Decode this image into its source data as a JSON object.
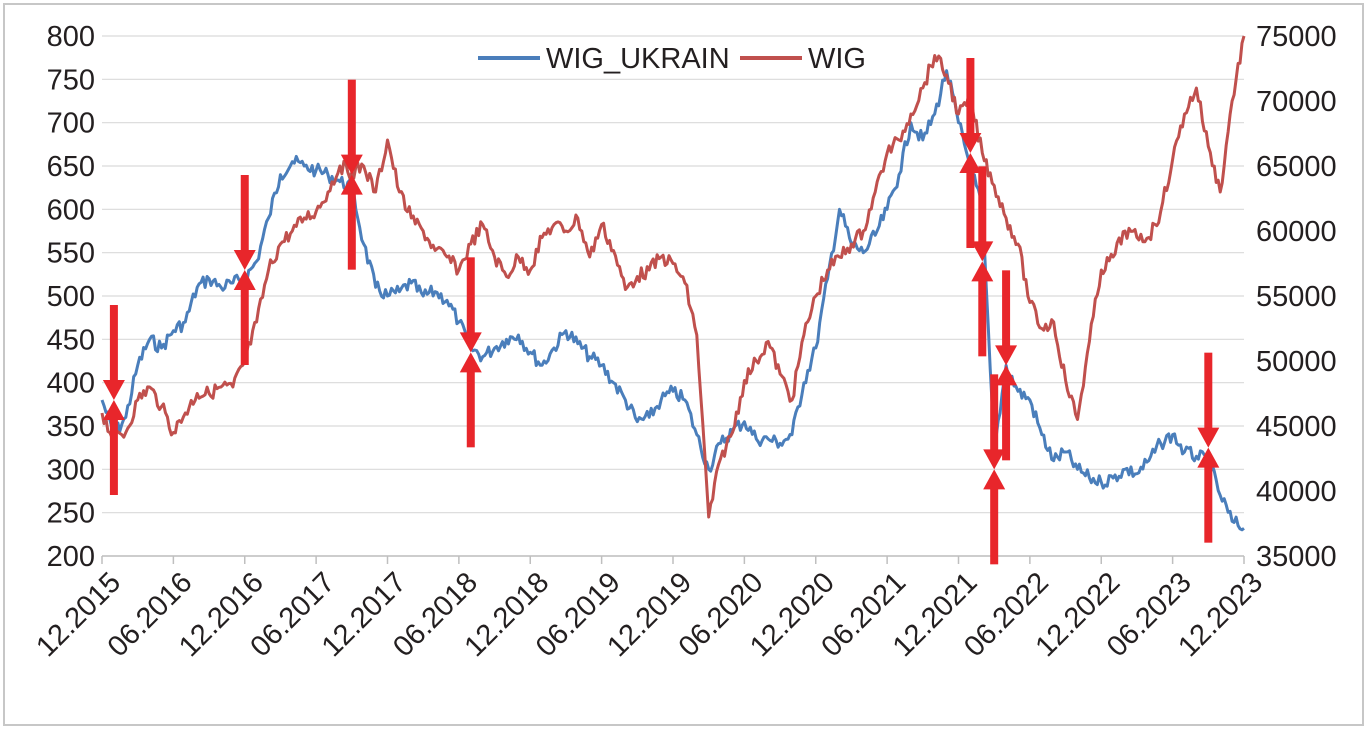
{
  "chart_data": {
    "type": "line",
    "title": "",
    "xlabel": "",
    "ylabel": "",
    "x_tick_labels": [
      "12.2015",
      "06.2016",
      "12.2016",
      "06.2017",
      "12.2017",
      "06.2018",
      "12.2018",
      "06.2019",
      "12.2019",
      "06.2020",
      "12.2020",
      "06.2021",
      "12.2021",
      "06.2022",
      "12.2022",
      "06.2023",
      "12.2023"
    ],
    "x_range": [
      "2015-12",
      "2023-12"
    ],
    "y_left": {
      "min": 200,
      "max": 800,
      "step": 50,
      "ticks": [
        "800",
        "750",
        "700",
        "650",
        "600",
        "550",
        "500",
        "450",
        "400",
        "350",
        "300",
        "250",
        "200"
      ]
    },
    "y_right": {
      "min": 35000,
      "max": 75000,
      "step": 5000,
      "ticks": [
        "75000",
        "70000",
        "65000",
        "60000",
        "55000",
        "50000",
        "45000",
        "40000",
        "35000"
      ]
    },
    "grid": true,
    "legend_position": "top-center",
    "series": [
      {
        "name": "WIG_UKRAIN",
        "axis": "left",
        "color": "#4a7ebb",
        "points": [
          [
            "2015-12",
            380
          ],
          [
            "2016-01",
            340
          ],
          [
            "2016-02",
            360
          ],
          [
            "2016-03",
            420
          ],
          [
            "2016-04",
            450
          ],
          [
            "2016-05",
            440
          ],
          [
            "2016-06",
            460
          ],
          [
            "2016-07",
            470
          ],
          [
            "2016-08",
            510
          ],
          [
            "2016-09",
            520
          ],
          [
            "2016-10",
            510
          ],
          [
            "2016-11",
            515
          ],
          [
            "2016-12",
            520
          ],
          [
            "2017-01",
            540
          ],
          [
            "2017-02",
            590
          ],
          [
            "2017-03",
            640
          ],
          [
            "2017-04",
            655
          ],
          [
            "2017-05",
            650
          ],
          [
            "2017-06",
            645
          ],
          [
            "2017-07",
            640
          ],
          [
            "2017-08",
            632
          ],
          [
            "2017-09",
            625
          ],
          [
            "2017-10",
            560
          ],
          [
            "2017-11",
            510
          ],
          [
            "2017-12",
            500
          ],
          [
            "2018-01",
            505
          ],
          [
            "2018-02",
            515
          ],
          [
            "2018-03",
            500
          ],
          [
            "2018-04",
            505
          ],
          [
            "2018-05",
            495
          ],
          [
            "2018-06",
            470
          ],
          [
            "2018-07",
            440
          ],
          [
            "2018-08",
            430
          ],
          [
            "2018-09",
            440
          ],
          [
            "2018-10",
            450
          ],
          [
            "2018-11",
            455
          ],
          [
            "2018-12",
            435
          ],
          [
            "2019-01",
            420
          ],
          [
            "2019-02",
            440
          ],
          [
            "2019-03",
            460
          ],
          [
            "2019-04",
            445
          ],
          [
            "2019-05",
            430
          ],
          [
            "2019-06",
            420
          ],
          [
            "2019-07",
            400
          ],
          [
            "2019-08",
            380
          ],
          [
            "2019-09",
            355
          ],
          [
            "2019-10",
            360
          ],
          [
            "2019-11",
            380
          ],
          [
            "2019-12",
            390
          ],
          [
            "2020-01",
            380
          ],
          [
            "2020-02",
            340
          ],
          [
            "2020-03",
            300
          ],
          [
            "2020-04",
            330
          ],
          [
            "2020-05",
            345
          ],
          [
            "2020-06",
            355
          ],
          [
            "2020-07",
            335
          ],
          [
            "2020-08",
            335
          ],
          [
            "2020-09",
            330
          ],
          [
            "2020-10",
            340
          ],
          [
            "2020-11",
            400
          ],
          [
            "2020-12",
            440
          ],
          [
            "2021-01",
            520
          ],
          [
            "2021-02",
            600
          ],
          [
            "2021-03",
            560
          ],
          [
            "2021-04",
            550
          ],
          [
            "2021-05",
            570
          ],
          [
            "2021-06",
            600
          ],
          [
            "2021-07",
            640
          ],
          [
            "2021-08",
            700
          ],
          [
            "2021-09",
            680
          ],
          [
            "2021-10",
            710
          ],
          [
            "2021-11",
            760
          ],
          [
            "2021-12",
            700
          ],
          [
            "2022-01",
            650
          ],
          [
            "2022-02",
            600
          ],
          [
            "2022-03",
            320
          ],
          [
            "2022-04",
            420
          ],
          [
            "2022-05",
            390
          ],
          [
            "2022-06",
            380
          ],
          [
            "2022-07",
            340
          ],
          [
            "2022-08",
            310
          ],
          [
            "2022-09",
            320
          ],
          [
            "2022-10",
            300
          ],
          [
            "2022-11",
            290
          ],
          [
            "2022-12",
            285
          ],
          [
            "2023-01",
            290
          ],
          [
            "2023-02",
            300
          ],
          [
            "2023-03",
            295
          ],
          [
            "2023-04",
            310
          ],
          [
            "2023-05",
            330
          ],
          [
            "2023-06",
            340
          ],
          [
            "2023-07",
            320
          ],
          [
            "2023-08",
            315
          ],
          [
            "2023-09",
            310
          ],
          [
            "2023-10",
            270
          ],
          [
            "2023-11",
            240
          ],
          [
            "2023-12",
            232
          ]
        ]
      },
      {
        "name": "WIG",
        "axis": "right",
        "color": "#c0504d",
        "points": [
          [
            "2015-12",
            46000
          ],
          [
            "2016-01",
            44000
          ],
          [
            "2016-02",
            44500
          ],
          [
            "2016-03",
            47000
          ],
          [
            "2016-04",
            48000
          ],
          [
            "2016-05",
            46500
          ],
          [
            "2016-06",
            44500
          ],
          [
            "2016-07",
            46000
          ],
          [
            "2016-08",
            47500
          ],
          [
            "2016-09",
            47500
          ],
          [
            "2016-10",
            48000
          ],
          [
            "2016-11",
            48000
          ],
          [
            "2016-12",
            50000
          ],
          [
            "2017-01",
            53000
          ],
          [
            "2017-02",
            57000
          ],
          [
            "2017-03",
            59000
          ],
          [
            "2017-04",
            60000
          ],
          [
            "2017-05",
            61000
          ],
          [
            "2017-06",
            61500
          ],
          [
            "2017-07",
            63000
          ],
          [
            "2017-08",
            65000
          ],
          [
            "2017-09",
            64500
          ],
          [
            "2017-10",
            65000
          ],
          [
            "2017-11",
            63000
          ],
          [
            "2017-12",
            67000
          ],
          [
            "2018-01",
            63000
          ],
          [
            "2018-02",
            61000
          ],
          [
            "2018-03",
            60000
          ],
          [
            "2018-04",
            58500
          ],
          [
            "2018-05",
            58000
          ],
          [
            "2018-06",
            57000
          ],
          [
            "2018-07",
            59000
          ],
          [
            "2018-08",
            60500
          ],
          [
            "2018-09",
            58000
          ],
          [
            "2018-10",
            56500
          ],
          [
            "2018-11",
            58000
          ],
          [
            "2018-12",
            57000
          ],
          [
            "2019-01",
            59500
          ],
          [
            "2019-02",
            60500
          ],
          [
            "2019-03",
            60000
          ],
          [
            "2019-04",
            61000
          ],
          [
            "2019-05",
            58000
          ],
          [
            "2019-06",
            60500
          ],
          [
            "2019-07",
            58500
          ],
          [
            "2019-08",
            55500
          ],
          [
            "2019-09",
            56500
          ],
          [
            "2019-10",
            57000
          ],
          [
            "2019-11",
            58000
          ],
          [
            "2019-12",
            57500
          ],
          [
            "2020-01",
            56000
          ],
          [
            "2020-02",
            52000
          ],
          [
            "2020-03",
            38000
          ],
          [
            "2020-04",
            42500
          ],
          [
            "2020-05",
            44500
          ],
          [
            "2020-06",
            48500
          ],
          [
            "2020-07",
            50000
          ],
          [
            "2020-08",
            51500
          ],
          [
            "2020-09",
            49000
          ],
          [
            "2020-10",
            47000
          ],
          [
            "2020-11",
            52000
          ],
          [
            "2020-12",
            55000
          ],
          [
            "2021-01",
            57000
          ],
          [
            "2021-02",
            58000
          ],
          [
            "2021-03",
            59000
          ],
          [
            "2021-04",
            60000
          ],
          [
            "2021-05",
            63000
          ],
          [
            "2021-06",
            66000
          ],
          [
            "2021-07",
            67000
          ],
          [
            "2021-08",
            69000
          ],
          [
            "2021-09",
            71000
          ],
          [
            "2021-10",
            73500
          ],
          [
            "2021-11",
            72000
          ],
          [
            "2021-12",
            69000
          ],
          [
            "2022-01",
            70000
          ],
          [
            "2022-02",
            66000
          ],
          [
            "2022-03",
            63500
          ],
          [
            "2022-04",
            61000
          ],
          [
            "2022-05",
            59000
          ],
          [
            "2022-06",
            54500
          ],
          [
            "2022-07",
            52500
          ],
          [
            "2022-08",
            53000
          ],
          [
            "2022-09",
            48500
          ],
          [
            "2022-10",
            45500
          ],
          [
            "2022-11",
            51500
          ],
          [
            "2022-12",
            57000
          ],
          [
            "2023-01",
            58000
          ],
          [
            "2023-02",
            60000
          ],
          [
            "2023-03",
            59500
          ],
          [
            "2023-04",
            59500
          ],
          [
            "2023-05",
            61500
          ],
          [
            "2023-06",
            65500
          ],
          [
            "2023-07",
            69000
          ],
          [
            "2023-08",
            71000
          ],
          [
            "2023-09",
            66500
          ],
          [
            "2023-10",
            63000
          ],
          [
            "2023-11",
            70000
          ],
          [
            "2023-12",
            75000
          ]
        ]
      }
    ],
    "annotations": {
      "type": "red arrows marking events",
      "color": "#e8262b",
      "markers": [
        {
          "date": "2016-01",
          "value_left": 380
        },
        {
          "date": "2016-12",
          "value_left": 530
        },
        {
          "date": "2017-09",
          "value_left": 640
        },
        {
          "date": "2018-07",
          "value_left": 435
        },
        {
          "date": "2022-01",
          "value_left": 665
        },
        {
          "date": "2022-02",
          "value_left": 540
        },
        {
          "date": "2022-03",
          "value_left": 300
        },
        {
          "date": "2022-04",
          "value_left": 420
        },
        {
          "date": "2023-09",
          "value_left": 325
        }
      ]
    }
  }
}
